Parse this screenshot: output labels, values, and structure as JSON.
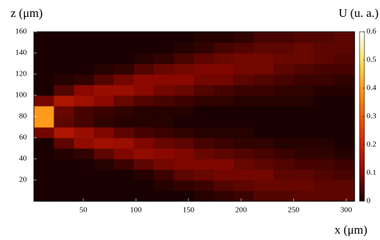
{
  "chart_data": {
    "type": "heatmap",
    "xlabel": "x (μm)",
    "ylabel": "z (μm)",
    "colorbar_label": "U (u. a.)",
    "xlim": [
      3,
      308
    ],
    "ylim": [
      0,
      160
    ],
    "xticks": [
      50,
      100,
      150,
      200,
      250,
      300
    ],
    "yticks": [
      20,
      40,
      60,
      80,
      100,
      120,
      140,
      160
    ],
    "clim": [
      0,
      0.6
    ],
    "cticks": [
      0,
      0.1,
      0.2,
      0.3,
      0.4,
      0.5,
      0.6
    ],
    "colormap": [
      "#1a0000",
      "#8a0800",
      "#d02400",
      "#f05a00",
      "#ff9a1a",
      "#ffe060",
      "#ffffff"
    ],
    "xbins": [
      3,
      22,
      41,
      60,
      79,
      98,
      117,
      136,
      155,
      174,
      193,
      212,
      231,
      250,
      269,
      288,
      307
    ],
    "zbins": [
      0,
      10,
      20,
      30,
      40,
      50,
      60,
      70,
      80,
      90,
      100,
      110,
      120,
      130,
      140,
      150,
      160
    ],
    "values": [
      [
        0,
        0,
        0,
        0,
        0,
        0,
        0.08,
        0.4,
        0.4,
        0.08,
        0,
        0,
        0,
        0,
        0,
        0
      ],
      [
        0,
        0,
        0,
        0,
        0.01,
        0.06,
        0.15,
        0.06,
        0.07,
        0.15,
        0.05,
        0.01,
        0,
        0,
        0,
        0
      ],
      [
        0,
        0,
        0,
        0,
        0.02,
        0.11,
        0.12,
        0.04,
        0.04,
        0.13,
        0.1,
        0.02,
        0,
        0,
        0,
        0
      ],
      [
        0,
        0,
        0,
        0.01,
        0.06,
        0.13,
        0.09,
        0.02,
        0.03,
        0.1,
        0.12,
        0.05,
        0.01,
        0,
        0,
        0
      ],
      [
        0,
        0,
        0,
        0.03,
        0.09,
        0.12,
        0.06,
        0.01,
        0.02,
        0.07,
        0.12,
        0.08,
        0.02,
        0,
        0,
        0
      ],
      [
        0,
        0,
        0.01,
        0.06,
        0.11,
        0.09,
        0.04,
        0.01,
        0.01,
        0.05,
        0.1,
        0.1,
        0.05,
        0.01,
        0,
        0
      ],
      [
        0,
        0.01,
        0.03,
        0.08,
        0.1,
        0.07,
        0.03,
        0.01,
        0.01,
        0.04,
        0.08,
        0.1,
        0.07,
        0.02,
        0,
        0
      ],
      [
        0,
        0.02,
        0.06,
        0.09,
        0.09,
        0.06,
        0.02,
        0,
        0.01,
        0.03,
        0.07,
        0.1,
        0.08,
        0.04,
        0.01,
        0
      ],
      [
        0.01,
        0.03,
        0.07,
        0.09,
        0.07,
        0.04,
        0.01,
        0,
        0,
        0.02,
        0.05,
        0.08,
        0.09,
        0.06,
        0.02,
        0.01
      ],
      [
        0.02,
        0.05,
        0.08,
        0.09,
        0.06,
        0.03,
        0.01,
        0,
        0,
        0.02,
        0.04,
        0.08,
        0.09,
        0.07,
        0.04,
        0.01
      ],
      [
        0.03,
        0.06,
        0.08,
        0.07,
        0.05,
        0.02,
        0.01,
        0,
        0,
        0.01,
        0.03,
        0.06,
        0.08,
        0.08,
        0.05,
        0.02
      ],
      [
        0.05,
        0.07,
        0.08,
        0.06,
        0.04,
        0.02,
        0,
        0,
        0,
        0.01,
        0.03,
        0.05,
        0.08,
        0.08,
        0.06,
        0.04
      ],
      [
        0.05,
        0.07,
        0.06,
        0.05,
        0.03,
        0.01,
        0,
        0,
        0,
        0.01,
        0.02,
        0.04,
        0.06,
        0.07,
        0.06,
        0.04
      ],
      [
        0.06,
        0.07,
        0.06,
        0.04,
        0.02,
        0.01,
        0,
        0,
        0,
        0.01,
        0.02,
        0.03,
        0.05,
        0.07,
        0.07,
        0.05
      ],
      [
        0.06,
        0.06,
        0.05,
        0.04,
        0.02,
        0.01,
        0,
        0,
        0,
        0,
        0.01,
        0.03,
        0.04,
        0.06,
        0.06,
        0.05
      ],
      [
        0.06,
        0.06,
        0.04,
        0.03,
        0.01,
        0,
        0,
        0,
        0,
        0,
        0.01,
        0.02,
        0.04,
        0.05,
        0.06,
        0.06
      ]
    ]
  }
}
